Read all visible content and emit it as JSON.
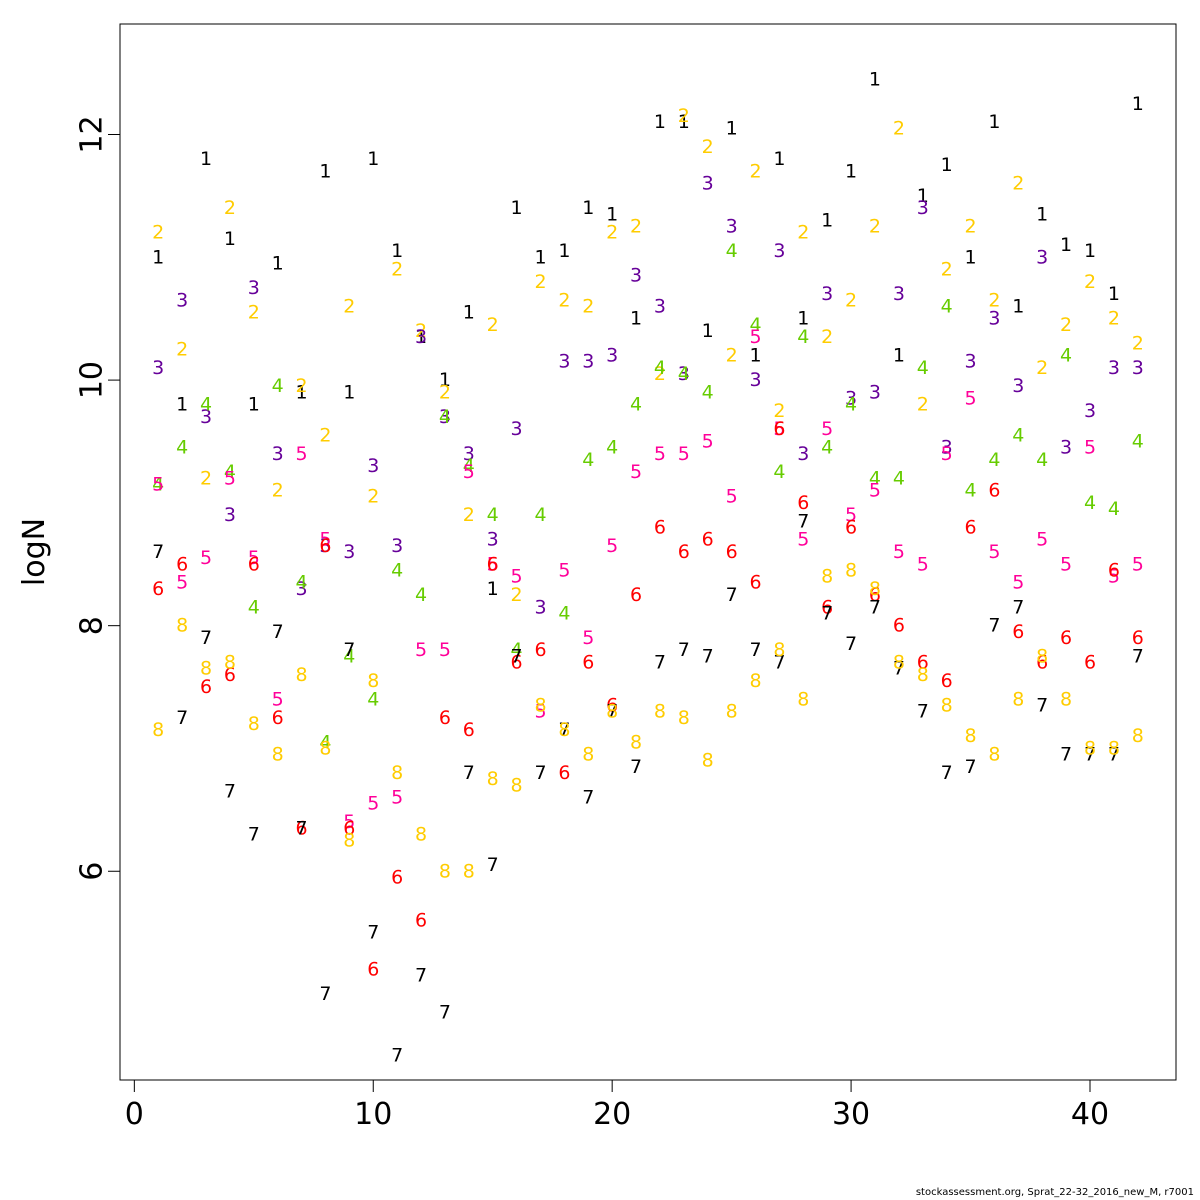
{
  "chart_data": {
    "type": "scatter",
    "title": "",
    "xlabel": "",
    "ylabel": "logN",
    "xlim": [
      -0.6,
      43.6
    ],
    "ylim": [
      4.3,
      12.9
    ],
    "xticks": [
      "0",
      "10",
      "20",
      "30",
      "40"
    ],
    "yticks": [
      "6",
      "8",
      "10",
      "12"
    ],
    "grid": false,
    "legend": "none",
    "colors": {
      "1": "#000000",
      "2": "#FFCC00",
      "3": "#660099",
      "4": "#66CC00",
      "5": "#FF0099",
      "6": "#FF0000",
      "7": "#000000",
      "8": "#FFCC00"
    },
    "x": [
      1,
      2,
      3,
      4,
      5,
      6,
      7,
      8,
      9,
      10,
      11,
      12,
      13,
      14,
      15,
      16,
      17,
      18,
      19,
      20,
      21,
      22,
      23,
      24,
      25,
      26,
      27,
      28,
      29,
      30,
      31,
      32,
      33,
      34,
      35,
      36,
      37,
      38,
      39,
      40,
      41,
      42
    ],
    "series": [
      {
        "name": "1",
        "values": [
          11.0,
          9.8,
          11.8,
          11.15,
          9.8,
          10.95,
          9.9,
          11.7,
          9.9,
          11.8,
          11.05,
          10.35,
          10.0,
          10.55,
          8.3,
          11.4,
          11.0,
          11.05,
          11.4,
          11.35,
          10.5,
          12.1,
          12.1,
          10.4,
          12.05,
          10.2,
          11.8,
          10.5,
          11.3,
          11.7,
          12.45,
          10.2,
          11.5,
          11.75,
          11.0,
          12.1,
          10.6,
          11.35,
          11.1,
          11.05,
          10.7,
          12.25
        ]
      },
      {
        "name": "2",
        "values": [
          11.2,
          10.25,
          9.2,
          11.4,
          10.55,
          9.1,
          9.95,
          9.55,
          10.6,
          9.05,
          10.9,
          10.4,
          9.9,
          8.9,
          10.45,
          8.25,
          10.8,
          10.65,
          10.6,
          11.2,
          11.25,
          10.05,
          12.15,
          11.9,
          10.2,
          11.7,
          9.75,
          11.2,
          10.35,
          10.65,
          11.25,
          12.05,
          9.8,
          10.9,
          11.25,
          10.65,
          11.6,
          10.1,
          10.45,
          10.8,
          10.5,
          10.3
        ]
      },
      {
        "name": "3",
        "values": [
          10.1,
          10.65,
          9.7,
          8.9,
          10.75,
          9.4,
          8.3,
          8.65,
          8.6,
          9.3,
          8.65,
          10.35,
          9.7,
          9.4,
          8.7,
          9.6,
          8.15,
          10.15,
          10.15,
          10.2,
          10.85,
          10.6,
          10.05,
          11.6,
          11.25,
          10.0,
          11.05,
          9.4,
          10.7,
          9.85,
          9.9,
          10.7,
          11.4,
          9.45,
          10.15,
          10.5,
          9.95,
          11.0,
          9.45,
          9.75,
          10.1,
          10.1
        ]
      },
      {
        "name": "4",
        "values": [
          9.15,
          9.45,
          9.8,
          9.25,
          8.15,
          9.95,
          8.35,
          7.05,
          7.75,
          7.4,
          8.45,
          8.25,
          9.7,
          9.3,
          8.9,
          7.8,
          8.9,
          8.1,
          9.35,
          9.45,
          9.8,
          10.1,
          10.05,
          9.9,
          11.05,
          10.45,
          9.25,
          10.35,
          9.45,
          9.8,
          9.2,
          9.2,
          10.1,
          10.6,
          9.1,
          9.35,
          9.55,
          9.35,
          10.2,
          9.0,
          8.95,
          9.5
        ]
      },
      {
        "name": "5",
        "values": [
          9.15,
          8.35,
          8.55,
          9.2,
          8.55,
          7.4,
          9.4,
          8.7,
          6.4,
          6.55,
          6.6,
          7.8,
          7.8,
          9.25,
          8.5,
          8.4,
          7.3,
          8.45,
          7.9,
          8.65,
          9.25,
          9.4,
          9.4,
          9.5,
          9.05,
          10.35,
          9.6,
          8.7,
          9.6,
          8.9,
          9.1,
          8.6,
          8.5,
          9.4,
          9.85,
          8.6,
          8.35,
          8.7,
          8.5,
          9.45,
          8.4,
          8.5
        ]
      },
      {
        "name": "6",
        "values": [
          8.3,
          8.5,
          7.5,
          7.6,
          8.5,
          7.25,
          6.35,
          8.65,
          6.35,
          5.2,
          5.95,
          5.6,
          7.25,
          7.15,
          8.5,
          7.7,
          7.8,
          6.8,
          7.7,
          7.35,
          8.25,
          8.8,
          8.6,
          8.7,
          8.6,
          8.35,
          9.6,
          9.0,
          8.15,
          8.8,
          8.25,
          8.0,
          7.7,
          7.55,
          8.8,
          9.1,
          7.95,
          7.7,
          7.9,
          7.7,
          8.45,
          7.9
        ]
      },
      {
        "name": "7",
        "values": [
          8.6,
          7.25,
          7.9,
          6.65,
          6.3,
          7.95,
          6.35,
          5.0,
          7.8,
          5.5,
          4.5,
          5.15,
          4.85,
          6.8,
          6.05,
          7.75,
          6.8,
          7.15,
          6.6,
          7.3,
          6.85,
          7.7,
          7.8,
          7.75,
          8.25,
          7.8,
          7.7,
          8.85,
          8.1,
          7.85,
          8.15,
          7.65,
          7.3,
          6.8,
          6.85,
          8.0,
          8.15,
          7.35,
          6.95,
          6.95,
          6.95,
          7.75
        ]
      },
      {
        "name": "8",
        "values": [
          7.15,
          8.0,
          7.65,
          7.7,
          7.2,
          6.95,
          7.6,
          7.0,
          6.25,
          7.55,
          6.8,
          6.3,
          6.0,
          6.0,
          6.75,
          6.7,
          7.35,
          7.15,
          6.95,
          7.3,
          7.05,
          7.3,
          7.25,
          6.9,
          7.3,
          7.55,
          7.8,
          7.4,
          8.4,
          8.45,
          8.3,
          7.7,
          7.6,
          7.35,
          7.1,
          6.95,
          7.4,
          7.75,
          7.4,
          7.0,
          7.0,
          7.1
        ]
      }
    ]
  },
  "credit": "stockassessment.org, Sprat_22-32_2016_new_M, r7001"
}
